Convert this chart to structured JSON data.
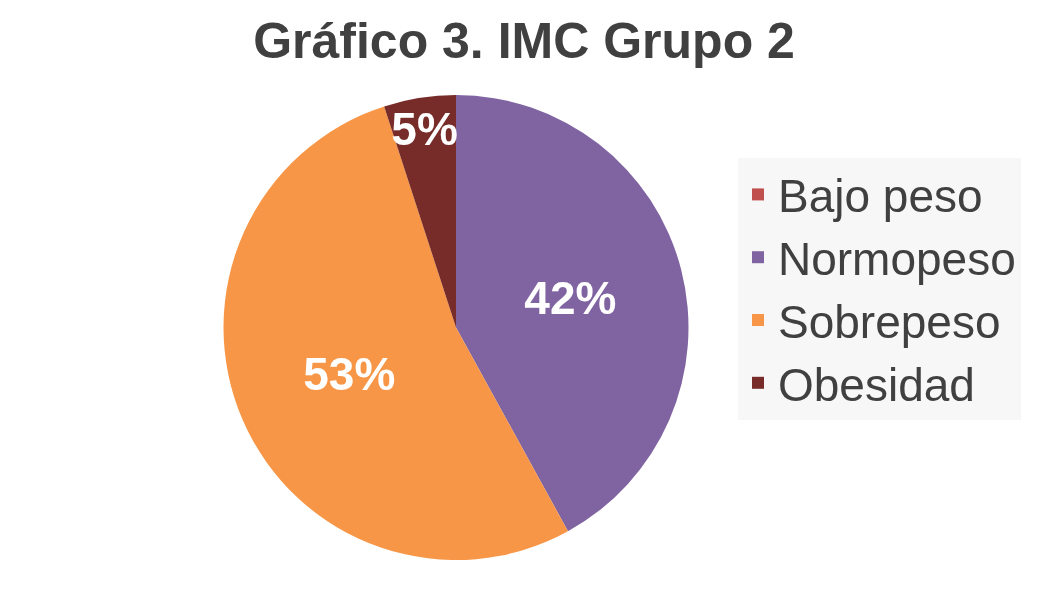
{
  "chart_data": {
    "type": "pie",
    "title": "Gráfico 3. IMC Grupo 2",
    "categories": [
      "Bajo peso",
      "Normopeso",
      "Sobrepeso",
      "Obesidad"
    ],
    "values": [
      0,
      42,
      53,
      5
    ],
    "colors": [
      "#c0504d",
      "#8064a2",
      "#f79646",
      "#772c2a"
    ],
    "value_labels": [
      null,
      "42%",
      "53%",
      "5%"
    ],
    "legend": "right"
  }
}
